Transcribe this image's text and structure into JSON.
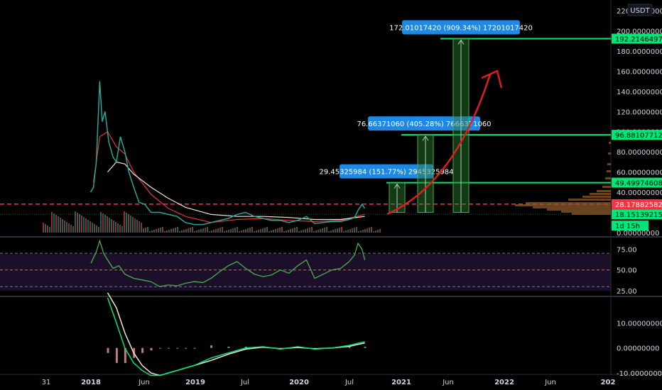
{
  "chart_data": {
    "type": "line",
    "title": "",
    "currency_label": "USDT",
    "time_axis": {
      "tick_labels": [
        "31",
        "2018",
        "Jun",
        "2019",
        "Jul",
        "2020",
        "Jul",
        "2021",
        "Jun",
        "2022",
        "Jun",
        "202"
      ]
    },
    "main_panel": {
      "ylim": [
        0,
        220
      ],
      "y_tick_labels": [
        "220.00000000",
        "200.00000000",
        "180.00000000",
        "160.00000000",
        "140.00000000",
        "120.00000000",
        "100.00000000",
        "80.00000000",
        "60.00000000",
        "40.00000000",
        "20.00000000",
        "0.00000000"
      ],
      "price_series": {
        "name": "",
        "x": [
          "2017-12-31",
          "2018-01-10",
          "2018-01-20",
          "2018-02-01",
          "2018-02-10",
          "2018-02-20",
          "2018-03-05",
          "2018-03-20",
          "2018-04-01",
          "2018-04-15",
          "2018-05-01",
          "2018-05-15",
          "2018-06-01",
          "2018-06-20",
          "2018-07-10",
          "2018-08-01",
          "2018-09-01",
          "2018-10-01",
          "2018-11-01",
          "2018-12-01",
          "2019-01-01",
          "2019-02-01",
          "2019-03-01",
          "2019-04-01",
          "2019-05-01",
          "2019-06-01",
          "2019-07-01",
          "2019-08-01",
          "2019-09-01",
          "2019-10-01",
          "2019-11-01",
          "2019-12-01",
          "2020-01-01",
          "2020-02-01",
          "2020-03-01",
          "2020-04-01",
          "2020-05-01",
          "2020-06-01",
          "2020-07-01",
          "2020-07-20",
          "2020-08-01",
          "2020-08-15",
          "2020-08-25"
        ],
        "y": [
          40,
          45,
          70,
          150,
          110,
          120,
          90,
          75,
          70,
          95,
          80,
          60,
          45,
          30,
          28,
          20,
          20,
          18,
          16,
          10,
          8,
          8,
          10,
          12,
          14,
          18,
          20,
          16,
          14,
          12,
          12,
          10,
          12,
          16,
          9,
          10,
          11,
          11,
          13,
          15,
          22,
          28,
          24
        ]
      },
      "moving_averages": [
        {
          "name": "",
          "color": "#e53935",
          "x": [
            "2018-01-10",
            "2018-02-01",
            "2018-03-01",
            "2018-04-01",
            "2018-05-01",
            "2018-06-01",
            "2018-08-01",
            "2018-10-01",
            "2018-12-01",
            "2019-03-01",
            "2019-06-01",
            "2019-09-01",
            "2019-12-01",
            "2020-03-01",
            "2020-06-01",
            "2020-08-25"
          ],
          "y": [
            50,
            95,
            100,
            85,
            78,
            60,
            38,
            24,
            16,
            10,
            13,
            14,
            12,
            11,
            12,
            18
          ]
        },
        {
          "name": "",
          "color": "#f0e6d8",
          "x": [
            "2018-03-01",
            "2018-04-01",
            "2018-05-01",
            "2018-06-01",
            "2018-08-01",
            "2018-10-01",
            "2018-12-01",
            "2019-03-01",
            "2019-06-01",
            "2019-09-01",
            "2019-12-01",
            "2020-03-01",
            "2020-06-01",
            "2020-08-25"
          ],
          "y": [
            60,
            70,
            68,
            58,
            45,
            34,
            25,
            18,
            16,
            16,
            15,
            13,
            13,
            16
          ]
        }
      ],
      "horizontal_levels": [
        {
          "label": "192.21464976",
          "value": 192.21464976,
          "color": "#00e676"
        },
        {
          "label": "96.88107712",
          "value": 96.88107712,
          "color": "#00e676"
        },
        {
          "label": "49.49974608",
          "value": 49.49974608,
          "color": "#00e676"
        },
        {
          "label": "28.17882582",
          "value": 28.17882582,
          "color": "#f23645"
        },
        {
          "label": "18.15139215",
          "value": 18.15139215,
          "color": "#00e676"
        }
      ],
      "countdown_label": "1d 15h",
      "measurement_boxes": [
        {
          "text": "29.45325984 (151.77%) 2945325984",
          "from": 20,
          "to": 49.5
        },
        {
          "text": "76.66371060 (405.28%) 7666371060",
          "from": 20,
          "to": 96.9
        },
        {
          "text": "172.01017420 (909.34%) 17201017420",
          "from": 20,
          "to": 192.2
        }
      ]
    },
    "rsi_panel": {
      "ylim": [
        20,
        88
      ],
      "y_tick_labels": [
        "75.00",
        "50.00",
        "25.00"
      ],
      "guide_levels": [
        70,
        50,
        30
      ],
      "series": {
        "name": "",
        "x": [
          "2018-01-01",
          "2018-01-20",
          "2018-02-01",
          "2018-02-15",
          "2018-03-01",
          "2018-03-20",
          "2018-04-10",
          "2018-05-01",
          "2018-06-01",
          "2018-07-01",
          "2018-08-01",
          "2018-09-01",
          "2018-10-01",
          "2018-11-01",
          "2018-12-01",
          "2019-01-01",
          "2019-02-01",
          "2019-03-01",
          "2019-04-01",
          "2019-05-01",
          "2019-06-01",
          "2019-07-01",
          "2019-08-01",
          "2019-09-01",
          "2019-10-01",
          "2019-11-01",
          "2019-12-01",
          "2020-01-01",
          "2020-02-01",
          "2020-03-01",
          "2020-04-01",
          "2020-05-01",
          "2020-06-01",
          "2020-07-01",
          "2020-07-20",
          "2020-08-01",
          "2020-08-15",
          "2020-08-25"
        ],
        "y": [
          58,
          72,
          85,
          70,
          62,
          52,
          55,
          45,
          40,
          38,
          36,
          30,
          32,
          31,
          34,
          36,
          35,
          40,
          48,
          55,
          60,
          52,
          45,
          42,
          44,
          50,
          46,
          55,
          62,
          40,
          45,
          50,
          52,
          60,
          68,
          82,
          75,
          62
        ]
      }
    },
    "macd_panel": {
      "ylim": [
        -10,
        20
      ],
      "y_tick_labels": [
        "10.00000000",
        "0.00000000",
        "-10.00000000"
      ],
      "macd_line": {
        "name": "",
        "x": [
          "2018-03-01",
          "2018-04-01",
          "2018-05-01",
          "2018-06-01",
          "2018-07-01",
          "2018-08-01",
          "2018-09-01",
          "2018-10-01",
          "2018-11-01",
          "2018-12-01",
          "2019-01-01",
          "2019-03-01",
          "2019-05-01",
          "2019-07-01",
          "2019-09-01",
          "2019-11-01",
          "2020-01-01",
          "2020-03-01",
          "2020-05-01",
          "2020-07-01",
          "2020-08-25"
        ],
        "y": [
          20,
          10,
          0,
          -6,
          -9,
          -11,
          -11,
          -10,
          -9,
          -8,
          -7,
          -4,
          -2,
          0,
          0.5,
          -0.5,
          0.5,
          -0.5,
          0,
          1,
          2.5
        ]
      },
      "signal_line": {
        "name": "",
        "x": [
          "2018-03-01",
          "2018-04-01",
          "2018-05-01",
          "2018-06-01",
          "2018-07-01",
          "2018-08-01",
          "2018-09-01",
          "2018-10-01",
          "2018-11-01",
          "2018-12-01",
          "2019-01-01",
          "2019-03-01",
          "2019-05-01",
          "2019-07-01",
          "2019-09-01",
          "2019-11-01",
          "2020-01-01",
          "2020-03-01",
          "2020-05-01",
          "2020-07-01",
          "2020-08-25"
        ],
        "y": [
          22,
          16,
          6,
          -2,
          -7,
          -10,
          -11,
          -10,
          -9,
          -8,
          -7,
          -5,
          -2.5,
          -0.5,
          0.3,
          -0.3,
          0.2,
          -0.3,
          0,
          0.6,
          2
        ]
      }
    }
  }
}
